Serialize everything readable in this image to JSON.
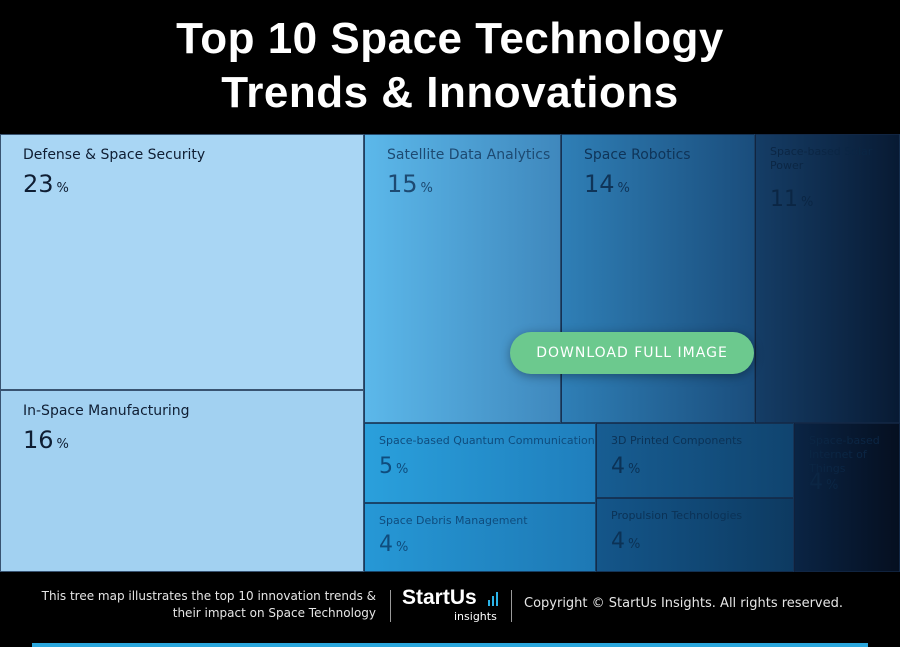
{
  "title": {
    "line1": "Top 10 Space Technology",
    "line2": "Trends & Innovations"
  },
  "download_button": "DOWNLOAD FULL IMAGE",
  "footer": {
    "description_line1": "This tree map illustrates the top 10 innovation trends &",
    "description_line2": "their impact on Space Technology",
    "logo_brand": "StartUs",
    "logo_sub": "insights",
    "copyright": "Copyright © StartUs Insights. All rights reserved."
  },
  "colors": {
    "title_bg": "#000000",
    "light_blue": "#a9d6f4",
    "mid_blue": "#2a9bd6",
    "dark_navy": "#061226",
    "button_green": "#6cc98e",
    "accent_bar": "#2aa6dc"
  },
  "chart_data": {
    "type": "treemap",
    "unit": "%",
    "items": [
      {
        "name": "Defense & Space Security",
        "value": 23
      },
      {
        "name": "In-Space Manufacturing",
        "value": 16
      },
      {
        "name": "Satellite Data Analytics",
        "value": 15
      },
      {
        "name": "Space Robotics",
        "value": 14
      },
      {
        "name": "Space-based Solar Power",
        "value": 11
      },
      {
        "name": "Space-based Quantum Communication",
        "value": 5
      },
      {
        "name": "3D Printed Components",
        "value": 4
      },
      {
        "name": "Space Debris Management",
        "value": 4
      },
      {
        "name": "Propulsion Technologies",
        "value": 4
      },
      {
        "name": "Space-based Internet of Things",
        "value": 4
      }
    ]
  }
}
